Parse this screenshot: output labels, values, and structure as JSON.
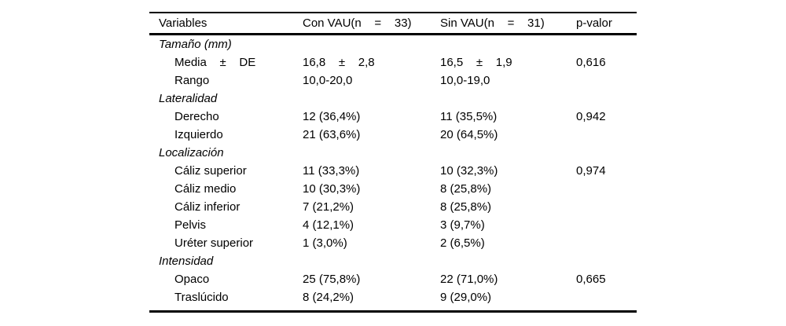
{
  "table": {
    "columns": {
      "variables": "Variables",
      "con_vau": "Con VAU(n    =    33)",
      "sin_vau": "Sin VAU(n    =    31)",
      "p_valor": "p-valor"
    },
    "rows": [
      {
        "type": "section",
        "label": "Tamaño (mm)",
        "con": "",
        "sin": "",
        "p": ""
      },
      {
        "type": "item",
        "label": "Media    ±    DE",
        "con": "16,8    ±    2,8",
        "sin": "16,5    ±    1,9",
        "p": "0,616"
      },
      {
        "type": "item",
        "label": "Rango",
        "con": "10,0-20,0",
        "sin": "10,0-19,0",
        "p": ""
      },
      {
        "type": "section",
        "label": "Lateralidad",
        "con": "",
        "sin": "",
        "p": ""
      },
      {
        "type": "item",
        "label": "Derecho",
        "con": "12 (36,4%)",
        "sin": "11 (35,5%)",
        "p": "0,942"
      },
      {
        "type": "item",
        "label": "Izquierdo",
        "con": "21 (63,6%)",
        "sin": "20 (64,5%)",
        "p": ""
      },
      {
        "type": "section",
        "label": "Localización",
        "con": "",
        "sin": "",
        "p": ""
      },
      {
        "type": "item",
        "label": "Cáliz superior",
        "con": "11 (33,3%)",
        "sin": "10 (32,3%)",
        "p": "0,974"
      },
      {
        "type": "item",
        "label": "Cáliz medio",
        "con": "10 (30,3%)",
        "sin": "8 (25,8%)",
        "p": ""
      },
      {
        "type": "item",
        "label": "Cáliz inferior",
        "con": "7 (21,2%)",
        "sin": "8 (25,8%)",
        "p": ""
      },
      {
        "type": "item",
        "label": "Pelvis",
        "con": "4 (12,1%)",
        "sin": "3 (9,7%)",
        "p": ""
      },
      {
        "type": "item",
        "label": "Uréter superior",
        "con": "1 (3,0%)",
        "sin": "2 (6,5%)",
        "p": ""
      },
      {
        "type": "section",
        "label": "Intensidad",
        "con": "",
        "sin": "",
        "p": ""
      },
      {
        "type": "item",
        "label": "Opaco",
        "con": "25 (75,8%)",
        "sin": "22 (71,0%)",
        "p": "0,665"
      },
      {
        "type": "item",
        "label": "Traslúcido",
        "con": "8 (24,2%)",
        "sin": "9 (29,0%)",
        "p": ""
      }
    ]
  }
}
